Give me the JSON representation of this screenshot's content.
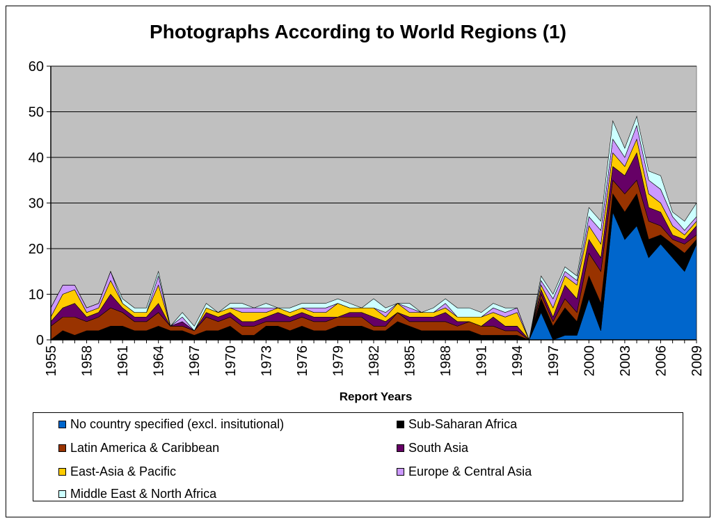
{
  "chart_data": {
    "type": "area",
    "stacked": true,
    "title": "Photographs According to World Regions (1)",
    "xlabel": "Report Years",
    "ylabel": "",
    "ylim": [
      0,
      60
    ],
    "yticks": [
      0,
      10,
      20,
      30,
      40,
      50,
      60
    ],
    "x_tick_labels": [
      "1955",
      "1958",
      "1961",
      "1964",
      "1967",
      "1970",
      "1973",
      "1976",
      "1979",
      "1982",
      "1985",
      "1988",
      "1991",
      "1994",
      "1997",
      "2000",
      "2003",
      "2006",
      "2009"
    ],
    "grid": true,
    "plot_background": "#C0C0C0",
    "legend_position": "bottom",
    "x": [
      1955,
      1956,
      1957,
      1958,
      1959,
      1960,
      1961,
      1962,
      1963,
      1964,
      1965,
      1966,
      1967,
      1968,
      1969,
      1970,
      1971,
      1972,
      1973,
      1974,
      1975,
      1976,
      1977,
      1978,
      1979,
      1980,
      1981,
      1982,
      1983,
      1984,
      1985,
      1986,
      1987,
      1988,
      1989,
      1990,
      1991,
      1992,
      1993,
      1994,
      1995,
      1996,
      1997,
      1998,
      1999,
      2000,
      2001,
      2002,
      2003,
      2004,
      2005,
      2006,
      2007,
      2008,
      2009
    ],
    "series": [
      {
        "name": "No country specified (excl. insitutional)",
        "color": "#0066CC",
        "values": [
          0,
          0,
          0,
          0,
          0,
          0,
          0,
          0,
          0,
          0,
          0,
          0,
          0,
          0,
          0,
          0,
          0,
          0,
          0,
          0,
          0,
          0,
          0,
          0,
          0,
          0,
          0,
          0,
          0,
          0,
          0,
          0,
          0,
          0,
          0,
          0,
          0,
          0,
          0,
          0,
          0,
          6,
          0,
          1,
          1,
          9,
          2,
          28,
          22,
          25,
          18,
          21,
          18,
          15,
          21
        ]
      },
      {
        "name": "Sub-Saharan Africa",
        "color": "#000000",
        "values": [
          0,
          2,
          1,
          2,
          2,
          3,
          3,
          2,
          2,
          3,
          2,
          2,
          1,
          2,
          2,
          3,
          1,
          1,
          3,
          3,
          2,
          3,
          2,
          2,
          3,
          3,
          3,
          2,
          2,
          4,
          3,
          2,
          2,
          2,
          2,
          2,
          1,
          1,
          1,
          1,
          0,
          3,
          3,
          6,
          3,
          5,
          6,
          4,
          6,
          7,
          4,
          2,
          3,
          4,
          1
        ]
      },
      {
        "name": "Latin America & Caribbean",
        "color": "#993300",
        "values": [
          3,
          3,
          4,
          2,
          3,
          4,
          3,
          2,
          2,
          3,
          1,
          1,
          1,
          3,
          2,
          2,
          2,
          2,
          1,
          1,
          2,
          2,
          2,
          2,
          2,
          2,
          2,
          1,
          1,
          2,
          1,
          2,
          2,
          2,
          1,
          2,
          2,
          2,
          1,
          1,
          0,
          1,
          1,
          2,
          2,
          5,
          7,
          3,
          4,
          3,
          4,
          2,
          1,
          2,
          1
        ]
      },
      {
        "name": "South Asia",
        "color": "#660066",
        "values": [
          1,
          2,
          3,
          1,
          1,
          3,
          1,
          1,
          1,
          2,
          0,
          1,
          0,
          1,
          1,
          1,
          1,
          1,
          1,
          2,
          1,
          1,
          1,
          1,
          0,
          1,
          1,
          2,
          1,
          0,
          1,
          1,
          1,
          2,
          1,
          0,
          0,
          2,
          1,
          1,
          0,
          1,
          1,
          3,
          3,
          3,
          3,
          3,
          4,
          6,
          3,
          3,
          1,
          1,
          2
        ]
      },
      {
        "name": "East-Asia & Pacific",
        "color": "#FFCC00",
        "values": [
          1,
          3,
          3,
          1,
          1,
          3,
          1,
          1,
          1,
          4,
          0,
          0,
          0,
          1,
          1,
          1,
          2,
          2,
          1,
          1,
          1,
          1,
          1,
          1,
          3,
          1,
          1,
          2,
          1,
          2,
          1,
          1,
          1,
          1,
          1,
          1,
          2,
          1,
          2,
          3,
          0,
          1,
          2,
          2,
          3,
          3,
          3,
          3,
          2,
          3,
          3,
          2,
          2,
          1,
          1
        ]
      },
      {
        "name": "Europe & Central Asia",
        "color": "#CC99FF",
        "values": [
          2,
          2,
          1,
          1,
          1,
          2,
          0,
          0,
          0,
          2,
          0,
          1,
          0,
          0,
          0,
          0,
          1,
          1,
          1,
          0,
          0,
          0,
          1,
          1,
          0,
          0,
          0,
          0,
          1,
          0,
          1,
          0,
          0,
          1,
          0,
          0,
          0,
          1,
          1,
          1,
          0,
          1,
          2,
          1,
          1,
          2,
          3,
          3,
          2,
          3,
          3,
          3,
          2,
          1,
          1
        ]
      },
      {
        "name": "Middle East & North Africa",
        "color": "#CCFFFF",
        "values": [
          0,
          0,
          0,
          0,
          0,
          0,
          1,
          1,
          1,
          1,
          0,
          1,
          1,
          1,
          0,
          1,
          1,
          0,
          1,
          0,
          1,
          1,
          1,
          1,
          1,
          1,
          0,
          2,
          1,
          0,
          1,
          0,
          1,
          1,
          2,
          2,
          1,
          1,
          1,
          0,
          0,
          1,
          1,
          1,
          1,
          2,
          2,
          4,
          2,
          2,
          2,
          3,
          1,
          2,
          3
        ]
      }
    ]
  }
}
